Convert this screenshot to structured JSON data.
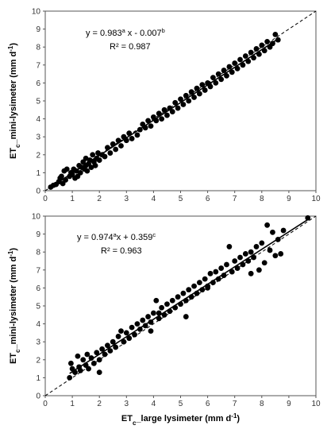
{
  "chart_data": [
    {
      "type": "scatter",
      "ylabel": "ETc_mini-lysimeter (mm d-1)",
      "ylabel_parts": {
        "base": "ET",
        "sub": "c",
        "rest": "_mini-lysimeter (mm d",
        "sup": "-1",
        "end": ")"
      },
      "xlabel": "",
      "xlim": [
        0,
        10
      ],
      "ylim": [
        0,
        10
      ],
      "xticks": [
        "0",
        "1",
        "2",
        "3",
        "4",
        "5",
        "6",
        "7",
        "8",
        "9",
        "10"
      ],
      "yticks": [
        "0",
        "1",
        "2",
        "3",
        "4",
        "5",
        "6",
        "7",
        "8",
        "9",
        "10"
      ],
      "grid": false,
      "equation": {
        "prefix": "y = 0.983",
        "sup1": "a",
        "mid": " x - 0.007",
        "sup2": "b"
      },
      "r2": "R² = 0.987",
      "fit": {
        "slope": 0.983,
        "intercept": -0.007
      },
      "reference_line": "1:1 dashed",
      "points": [
        [
          0.2,
          0.2
        ],
        [
          0.3,
          0.3
        ],
        [
          0.4,
          0.35
        ],
        [
          0.5,
          0.5
        ],
        [
          0.55,
          0.7
        ],
        [
          0.6,
          0.8
        ],
        [
          0.65,
          0.4
        ],
        [
          0.7,
          1.1
        ],
        [
          0.75,
          0.6
        ],
        [
          0.8,
          1.2
        ],
        [
          0.9,
          0.8
        ],
        [
          0.95,
          1.0
        ],
        [
          1.0,
          0.9
        ],
        [
          1.05,
          1.2
        ],
        [
          1.1,
          0.7
        ],
        [
          1.15,
          1.1
        ],
        [
          1.2,
          0.8
        ],
        [
          1.25,
          1.4
        ],
        [
          1.3,
          1.0
        ],
        [
          1.35,
          1.3
        ],
        [
          1.4,
          1.6
        ],
        [
          1.45,
          1.2
        ],
        [
          1.5,
          1.4
        ],
        [
          1.5,
          1.8
        ],
        [
          1.55,
          1.1
        ],
        [
          1.6,
          1.5
        ],
        [
          1.65,
          1.7
        ],
        [
          1.7,
          1.3
        ],
        [
          1.75,
          2.0
        ],
        [
          1.8,
          1.6
        ],
        [
          1.85,
          1.4
        ],
        [
          1.9,
          1.8
        ],
        [
          1.95,
          2.1
        ],
        [
          2.0,
          1.7
        ],
        [
          2.1,
          2.0
        ],
        [
          2.2,
          1.9
        ],
        [
          2.3,
          2.4
        ],
        [
          2.4,
          2.1
        ],
        [
          2.5,
          2.6
        ],
        [
          2.6,
          2.3
        ],
        [
          2.7,
          2.8
        ],
        [
          2.8,
          2.5
        ],
        [
          2.9,
          3.0
        ],
        [
          3.0,
          2.8
        ],
        [
          3.1,
          3.2
        ],
        [
          3.2,
          2.9
        ],
        [
          3.4,
          3.1
        ],
        [
          3.5,
          3.4
        ],
        [
          3.6,
          3.7
        ],
        [
          3.7,
          3.5
        ],
        [
          3.8,
          3.9
        ],
        [
          3.9,
          3.6
        ],
        [
          4.0,
          4.1
        ],
        [
          4.1,
          3.9
        ],
        [
          4.2,
          4.3
        ],
        [
          4.3,
          4.0
        ],
        [
          4.4,
          4.5
        ],
        [
          4.5,
          4.2
        ],
        [
          4.6,
          4.6
        ],
        [
          4.7,
          4.4
        ],
        [
          4.8,
          4.9
        ],
        [
          4.9,
          4.6
        ],
        [
          5.0,
          5.1
        ],
        [
          5.1,
          4.8
        ],
        [
          5.2,
          5.3
        ],
        [
          5.3,
          5.0
        ],
        [
          5.4,
          5.5
        ],
        [
          5.5,
          5.2
        ],
        [
          5.6,
          5.7
        ],
        [
          5.7,
          5.4
        ],
        [
          5.8,
          5.9
        ],
        [
          5.9,
          5.6
        ],
        [
          6.0,
          6.0
        ],
        [
          6.1,
          5.8
        ],
        [
          6.2,
          6.3
        ],
        [
          6.3,
          6.0
        ],
        [
          6.4,
          6.5
        ],
        [
          6.5,
          6.2
        ],
        [
          6.6,
          6.7
        ],
        [
          6.7,
          6.4
        ],
        [
          6.8,
          6.9
        ],
        [
          6.9,
          6.6
        ],
        [
          7.0,
          7.1
        ],
        [
          7.1,
          6.8
        ],
        [
          7.2,
          7.3
        ],
        [
          7.3,
          7.0
        ],
        [
          7.4,
          7.5
        ],
        [
          7.5,
          7.2
        ],
        [
          7.6,
          7.7
        ],
        [
          7.7,
          7.4
        ],
        [
          7.8,
          7.9
        ],
        [
          7.9,
          7.6
        ],
        [
          8.0,
          8.1
        ],
        [
          8.1,
          7.8
        ],
        [
          8.2,
          8.3
        ],
        [
          8.3,
          8.0
        ],
        [
          8.4,
          8.2
        ],
        [
          8.5,
          8.7
        ],
        [
          8.6,
          8.4
        ],
        [
          6.05,
          5.95
        ]
      ]
    },
    {
      "type": "scatter",
      "ylabel": "ETc_mini-lysimeter (mm d-1)",
      "ylabel_parts": {
        "base": "ET",
        "sub": "c",
        "rest": "_mini-lysimeter (mm d",
        "sup": "-1",
        "end": ")"
      },
      "xlabel": "ETc_large lysimeter (mm d-1)",
      "xlabel_parts": {
        "base": "ET",
        "sub": "c",
        "rest": "_large lysimeter (mm d",
        "sup": "-1",
        "end": ")"
      },
      "xlim": [
        0,
        10
      ],
      "ylim": [
        0,
        10
      ],
      "xticks": [
        "0",
        "1",
        "2",
        "3",
        "4",
        "5",
        "6",
        "7",
        "8",
        "9",
        "10"
      ],
      "yticks": [
        "0",
        "1",
        "2",
        "3",
        "4",
        "5",
        "6",
        "7",
        "8",
        "9",
        "10"
      ],
      "grid": false,
      "equation": {
        "prefix": "y = 0.974",
        "sup1": "a",
        "mid": "x + 0.359",
        "sup2": "c"
      },
      "r2": "R² = 0.963",
      "fit": {
        "slope": 0.974,
        "intercept": 0.359
      },
      "reference_line": "1:1 dashed",
      "points": [
        [
          0.9,
          1.0
        ],
        [
          0.95,
          1.8
        ],
        [
          1.0,
          1.5
        ],
        [
          1.1,
          1.3
        ],
        [
          1.2,
          2.2
        ],
        [
          1.25,
          1.6
        ],
        [
          1.3,
          1.4
        ],
        [
          1.4,
          2.0
        ],
        [
          1.5,
          1.7
        ],
        [
          1.55,
          2.3
        ],
        [
          1.6,
          1.5
        ],
        [
          1.7,
          2.1
        ],
        [
          1.8,
          1.8
        ],
        [
          1.9,
          2.4
        ],
        [
          2.0,
          2.0
        ],
        [
          2.1,
          2.6
        ],
        [
          2.2,
          2.3
        ],
        [
          2.3,
          2.8
        ],
        [
          2.4,
          2.5
        ],
        [
          2.5,
          3.0
        ],
        [
          2.6,
          2.7
        ],
        [
          2.7,
          3.3
        ],
        [
          2.8,
          3.6
        ],
        [
          2.9,
          3.0
        ],
        [
          3.0,
          3.5
        ],
        [
          3.1,
          3.2
        ],
        [
          3.2,
          3.8
        ],
        [
          3.3,
          3.4
        ],
        [
          3.4,
          4.0
        ],
        [
          3.5,
          3.7
        ],
        [
          3.6,
          4.2
        ],
        [
          3.7,
          3.9
        ],
        [
          3.8,
          4.4
        ],
        [
          3.9,
          4.1
        ],
        [
          4.0,
          4.6
        ],
        [
          4.1,
          5.3
        ],
        [
          4.2,
          4.3
        ],
        [
          4.3,
          4.9
        ],
        [
          4.4,
          4.5
        ],
        [
          4.5,
          5.1
        ],
        [
          4.6,
          4.7
        ],
        [
          4.7,
          5.3
        ],
        [
          4.8,
          4.9
        ],
        [
          4.9,
          5.5
        ],
        [
          5.0,
          5.1
        ],
        [
          5.1,
          5.7
        ],
        [
          5.2,
          5.3
        ],
        [
          5.3,
          5.9
        ],
        [
          5.4,
          5.5
        ],
        [
          5.5,
          6.1
        ],
        [
          5.6,
          5.7
        ],
        [
          5.7,
          6.3
        ],
        [
          5.8,
          5.9
        ],
        [
          5.9,
          6.5
        ],
        [
          6.0,
          6.1
        ],
        [
          6.1,
          6.8
        ],
        [
          6.2,
          6.3
        ],
        [
          6.3,
          6.9
        ],
        [
          6.4,
          6.5
        ],
        [
          6.5,
          7.1
        ],
        [
          6.6,
          6.7
        ],
        [
          6.7,
          7.3
        ],
        [
          6.8,
          8.3
        ],
        [
          6.9,
          6.9
        ],
        [
          7.0,
          7.5
        ],
        [
          7.1,
          7.1
        ],
        [
          7.2,
          7.7
        ],
        [
          7.3,
          7.3
        ],
        [
          7.4,
          7.9
        ],
        [
          7.5,
          7.5
        ],
        [
          7.6,
          8.0
        ],
        [
          7.7,
          7.7
        ],
        [
          7.8,
          8.3
        ],
        [
          7.9,
          7.0
        ],
        [
          8.0,
          8.5
        ],
        [
          8.1,
          7.4
        ],
        [
          8.2,
          9.5
        ],
        [
          8.3,
          8.1
        ],
        [
          8.4,
          9.1
        ],
        [
          8.5,
          7.8
        ],
        [
          8.6,
          8.7
        ],
        [
          8.7,
          7.9
        ],
        [
          8.8,
          9.2
        ],
        [
          9.7,
          9.9
        ],
        [
          2.0,
          1.3
        ],
        [
          3.9,
          3.6
        ],
        [
          4.2,
          4.6
        ],
        [
          5.2,
          4.4
        ],
        [
          6.0,
          6.0
        ],
        [
          7.6,
          6.8
        ]
      ]
    }
  ]
}
